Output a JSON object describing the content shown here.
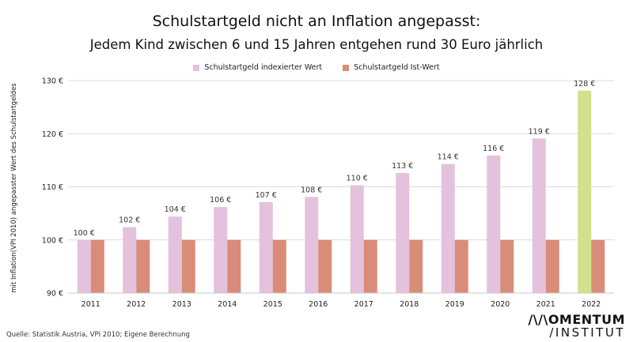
{
  "chart_data": {
    "type": "bar",
    "title": "Schulstartgeld nicht an Inflation angepasst:",
    "subtitle": "Jedem Kind zwischen 6 und 15 Jahren entgehen rund 30 Euro jährlich",
    "ylabel": "mit Inflation(VPI 2010) angepasster Wert des Schulstartgeldes",
    "xlabel": "",
    "ylim": [
      90,
      130
    ],
    "yticks": [
      {
        "value": 90,
        "label": "90 €"
      },
      {
        "value": 100,
        "label": "100 €"
      },
      {
        "value": 110,
        "label": "110 €"
      },
      {
        "value": 120,
        "label": "120 €"
      },
      {
        "value": 130,
        "label": "130 €"
      }
    ],
    "categories": [
      "2011",
      "2012",
      "2013",
      "2014",
      "2015",
      "2016",
      "2017",
      "2018",
      "2019",
      "2020",
      "2021",
      "2022"
    ],
    "series": [
      {
        "name": "Schulstartgeld indexierter Wert",
        "color": "#e4c2dd",
        "highlight_color": "#d3e08e",
        "highlight_index": 11,
        "values": [
          100,
          102.4,
          104.4,
          106.2,
          107.1,
          108.1,
          110.3,
          112.6,
          114.3,
          115.9,
          119.1,
          128.1
        ],
        "labels": [
          "100 €",
          "102 €",
          "104 €",
          "106 €",
          "107 €",
          "108 €",
          "110 €",
          "113 €",
          "114 €",
          "116 €",
          "119 €",
          "128 €"
        ]
      },
      {
        "name": "Schulstartgeld Ist-Wert",
        "color": "#d98c78",
        "values": [
          100,
          100,
          100,
          100,
          100,
          100,
          100,
          100,
          100,
          100,
          100,
          100
        ]
      }
    ],
    "legend": "top-center",
    "grid": true
  },
  "source": "Quelle: Statistik Austria, VPI 2010; Eigene Berechnung",
  "logo": {
    "line1": "/\\/\\OMENTUM",
    "line2": "/INSTITUT"
  }
}
